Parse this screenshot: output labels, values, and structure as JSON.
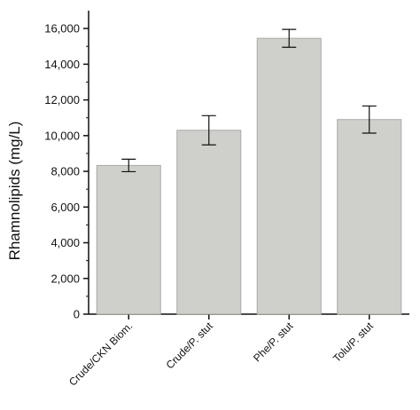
{
  "chart_data": {
    "type": "bar",
    "title": "",
    "xlabel": "",
    "ylabel": "Rhamnolipids (mg/L)",
    "categories": [
      "Crude/CKN Biom.",
      "Crude/P. stut",
      "Phe/P. stut",
      "Tolu/P. stut"
    ],
    "values": [
      8330,
      10300,
      15450,
      10900
    ],
    "errors": [
      350,
      820,
      500,
      760
    ],
    "ylim": [
      0,
      17000
    ],
    "yticks": [
      0,
      2000,
      4000,
      6000,
      8000,
      10000,
      12000,
      14000,
      16000
    ],
    "ytick_labels": [
      "0",
      "2,000",
      "4,000",
      "6,000",
      "8,000",
      "10,000",
      "12,000",
      "14,000",
      "16,000"
    ],
    "grid": false,
    "bar_color": "#cfd0cc",
    "bar_edge_color": "#a8aaa6"
  }
}
